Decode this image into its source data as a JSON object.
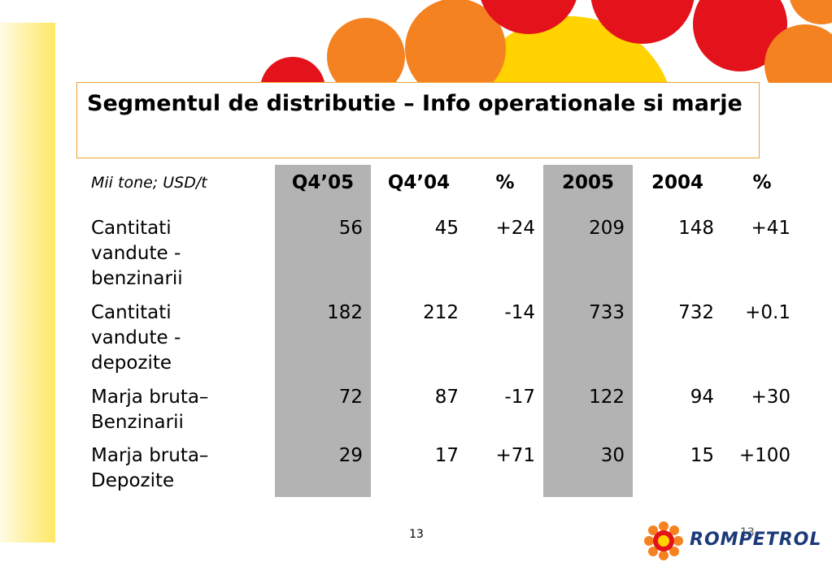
{
  "title": "Segmentul de distributie – Info operationale si marje",
  "table": {
    "units": "Mii tone; USD/t",
    "headers": [
      "Q4’05",
      "Q4’04",
      "%",
      "2005",
      "2004",
      "%"
    ],
    "rows": [
      {
        "label": "Cantitati vandute - benzinarii",
        "values": [
          "56",
          "45",
          "+24",
          "209",
          "148",
          "+41"
        ]
      },
      {
        "label": "Cantitati vandute  - depozite",
        "values": [
          "182",
          "212",
          "-14",
          "733",
          "732",
          "+0.1"
        ]
      },
      {
        "label": "Marja bruta– Benzinarii",
        "values": [
          "72",
          "87",
          "-17",
          "122",
          "94",
          "+30"
        ]
      },
      {
        "label": "Marja bruta– Depozite",
        "values": [
          "29",
          "17",
          "+71",
          "30",
          "15",
          "+100"
        ]
      }
    ]
  },
  "footer": {
    "page_number": "13",
    "page_number_overlay": "13",
    "logo_text": "ROMPETROL"
  },
  "colors": {
    "shade": "#b3b3b3",
    "title_border": "#f0a030",
    "sun_red": "#e3121b",
    "sun_orange": "#f58220",
    "sun_yellow": "#ffd200",
    "logo_blue": "#1c3a7a"
  }
}
